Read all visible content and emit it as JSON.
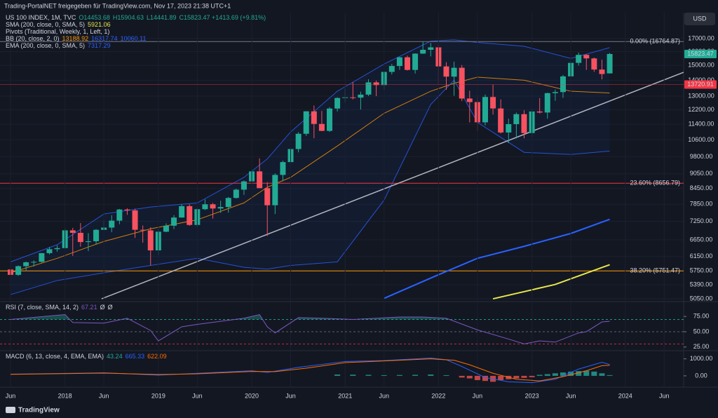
{
  "header": {
    "title": "Trading-PortalNET freigegeben für TradingView.com, Nov 17, 2023 21:38 UTC+1",
    "currency": "USD",
    "footer": "TradingView"
  },
  "legend": [
    {
      "parts": [
        {
          "text": "US 100 INDEX, 1M, TVC",
          "color": "#d1d4dc"
        },
        {
          "text": "O14453.68",
          "color": "#22ab94"
        },
        {
          "text": "H15904.63",
          "color": "#22ab94"
        },
        {
          "text": "L14441.89",
          "color": "#22ab94"
        },
        {
          "text": "C15823.47 +1413.69 (+9.81%)",
          "color": "#22ab94"
        }
      ]
    },
    {
      "parts": [
        {
          "text": "SMA (200, close, 0, SMA, 5)",
          "color": "#d1d4dc"
        },
        {
          "text": "5921.06",
          "color": "#e6e64c"
        }
      ]
    },
    {
      "parts": [
        {
          "text": "Pivots (Traditional, Weekly, 1, Left, 1)",
          "color": "#d1d4dc"
        }
      ]
    },
    {
      "parts": [
        {
          "text": "BB (20, close, 2, 0)",
          "color": "#d1d4dc"
        },
        {
          "text": "13188.92",
          "color": "#ff9800"
        },
        {
          "text": "16317.74",
          "color": "#2962ff"
        },
        {
          "text": "10060.11",
          "color": "#2962ff"
        }
      ]
    },
    {
      "parts": [
        {
          "text": "EMA (200, close, 0, SMA, 5)",
          "color": "#d1d4dc"
        },
        {
          "text": "7317.29",
          "color": "#2962ff"
        }
      ]
    }
  ],
  "chart_data": {
    "type": "candlestick",
    "up_color": "#22ab94",
    "down_color": "#f7525f",
    "xlim": [
      -1.35,
      86.5
    ],
    "xticks": [
      {
        "value": 0,
        "label": "Jun"
      },
      {
        "value": 7,
        "label": "2018"
      },
      {
        "value": 12,
        "label": "Jun"
      },
      {
        "value": 19,
        "label": "2019"
      },
      {
        "value": 24,
        "label": "Jun"
      },
      {
        "value": 31,
        "label": "2020"
      },
      {
        "value": 36,
        "label": "Jun"
      },
      {
        "value": 43,
        "label": "2021"
      },
      {
        "value": 48,
        "label": "Jun"
      },
      {
        "value": 55,
        "label": "2022"
      },
      {
        "value": 60,
        "label": "Jun"
      },
      {
        "value": 67,
        "label": "2023"
      },
      {
        "value": 72,
        "label": "Jun"
      },
      {
        "value": 79,
        "label": "2024"
      },
      {
        "value": 84,
        "label": "Jun"
      }
    ],
    "log_scale": true,
    "ylim": [
      4985,
      19190
    ],
    "yticks": [
      {
        "value": 17000,
        "label": "17000.00"
      },
      {
        "value": 16000,
        "label": "16000.00"
      },
      {
        "value": 15000,
        "label": "15000.00"
      },
      {
        "value": 14000,
        "label": "14000.00"
      },
      {
        "value": 13000,
        "label": "13000.00"
      },
      {
        "value": 12200,
        "label": "12200.00"
      },
      {
        "value": 11400,
        "label": "11400.00"
      },
      {
        "value": 10600,
        "label": "10600.00"
      },
      {
        "value": 9800,
        "label": "9800.00"
      },
      {
        "value": 9050,
        "label": "9050.00"
      },
      {
        "value": 8450,
        "label": "8450.00"
      },
      {
        "value": 7850,
        "label": "7850.00"
      },
      {
        "value": 7250,
        "label": "7250.00"
      },
      {
        "value": 6650,
        "label": "6650.00"
      },
      {
        "value": 6150,
        "label": "6150.00"
      },
      {
        "value": 5750,
        "label": "5750.00"
      },
      {
        "value": 5390,
        "label": "5390.00"
      },
      {
        "value": 5050,
        "label": "5050.00"
      }
    ],
    "grid": true,
    "candles": [
      [
        5790,
        5900,
        5570,
        5646
      ],
      [
        5646,
        5900,
        5620,
        5880
      ],
      [
        5880,
        6010,
        5750,
        5988
      ],
      [
        5988,
        6040,
        5870,
        6000
      ],
      [
        6000,
        6250,
        5980,
        6248
      ],
      [
        6248,
        6430,
        6210,
        6365
      ],
      [
        6365,
        6480,
        6290,
        6397
      ],
      [
        6397,
        7020,
        6390,
        6950
      ],
      [
        6950,
        7030,
        6170,
        6870
      ],
      [
        6870,
        7190,
        6440,
        6581
      ],
      [
        6581,
        6860,
        6310,
        6605
      ],
      [
        6605,
        6990,
        6520,
        6967
      ],
      [
        6967,
        7280,
        6960,
        7040
      ],
      [
        7040,
        7460,
        6890,
        7272
      ],
      [
        7272,
        7680,
        7150,
        7660
      ],
      [
        7660,
        7700,
        7470,
        7627
      ],
      [
        7627,
        7690,
        6710,
        6968
      ],
      [
        6968,
        7110,
        6560,
        6949
      ],
      [
        6949,
        7050,
        5900,
        6330
      ],
      [
        6330,
        6990,
        6190,
        6906
      ],
      [
        6906,
        7180,
        6890,
        7102
      ],
      [
        7102,
        7460,
        6990,
        7378
      ],
      [
        7378,
        7850,
        7370,
        7781
      ],
      [
        7781,
        7850,
        7100,
        7127
      ],
      [
        7127,
        7720,
        7050,
        7671
      ],
      [
        7671,
        8030,
        7640,
        7848
      ],
      [
        7848,
        7900,
        7340,
        7696
      ],
      [
        7696,
        7980,
        7540,
        7749
      ],
      [
        7749,
        8120,
        7550,
        8084
      ],
      [
        8084,
        8440,
        8060,
        8403
      ],
      [
        8403,
        8770,
        8200,
        8733
      ],
      [
        8733,
        9250,
        8700,
        9150
      ],
      [
        9150,
        9720,
        8470,
        8461
      ],
      [
        8461,
        8700,
        6770,
        7813
      ],
      [
        7813,
        9070,
        7500,
        9001
      ],
      [
        9001,
        9620,
        8740,
        9555
      ],
      [
        9555,
        10270,
        9320,
        10156
      ],
      [
        10156,
        10990,
        10000,
        10905
      ],
      [
        10905,
        12120,
        10800,
        12110
      ],
      [
        12110,
        12440,
        10680,
        11418
      ],
      [
        11418,
        12130,
        11040,
        11052
      ],
      [
        11052,
        12350,
        11000,
        12268
      ],
      [
        12268,
        12930,
        12100,
        12888
      ],
      [
        12888,
        13470,
        12620,
        12925
      ],
      [
        12925,
        13880,
        12800,
        12909
      ],
      [
        12909,
        13270,
        12210,
        13091
      ],
      [
        13091,
        14060,
        13000,
        13860
      ],
      [
        13860,
        13980,
        13000,
        13686
      ],
      [
        13686,
        14570,
        13400,
        14554
      ],
      [
        14554,
        15110,
        14380,
        14960
      ],
      [
        14960,
        15600,
        14690,
        15582
      ],
      [
        15582,
        15700,
        14650,
        14689
      ],
      [
        14689,
        15870,
        14440,
        15850
      ],
      [
        15850,
        16760,
        15840,
        16135
      ],
      [
        16135,
        16660,
        15650,
        16320
      ],
      [
        16320,
        16570,
        13720,
        14930
      ],
      [
        14930,
        15230,
        13390,
        14237
      ],
      [
        14237,
        15270,
        13020,
        14839
      ],
      [
        14839,
        15030,
        12700,
        12855
      ],
      [
        12855,
        13330,
        11500,
        12643
      ],
      [
        12643,
        12950,
        11040,
        11503
      ],
      [
        11503,
        13100,
        11340,
        12947
      ],
      [
        12947,
        13720,
        11930,
        12272
      ],
      [
        12272,
        12800,
        10920,
        10971
      ],
      [
        10971,
        11700,
        10440,
        11406
      ],
      [
        11406,
        12040,
        10670,
        11951
      ],
      [
        11951,
        12170,
        10680,
        10940
      ],
      [
        10940,
        12270,
        10700,
        12102
      ],
      [
        12102,
        12880,
        11990,
        12042
      ],
      [
        12042,
        13210,
        11700,
        13181
      ],
      [
        13181,
        13400,
        12720,
        13246
      ],
      [
        13246,
        14350,
        12890,
        14254
      ],
      [
        14254,
        15290,
        14180,
        15180
      ],
      [
        15180,
        15930,
        14990,
        15758
      ],
      [
        15758,
        15800,
        14690,
        15501
      ],
      [
        15501,
        15560,
        14560,
        14715
      ],
      [
        14715,
        15410,
        14060,
        14410
      ],
      [
        14453.68,
        15904.63,
        14441.89,
        15823.47
      ]
    ],
    "bb": {
      "x": [
        0,
        6,
        12,
        18,
        24,
        30,
        33,
        36,
        42,
        48,
        54,
        57,
        60,
        66,
        72,
        77
      ],
      "upper": [
        6000,
        6500,
        7500,
        7750,
        7900,
        8900,
        9700,
        11000,
        13300,
        15100,
        16800,
        16900,
        16700,
        16400,
        15500,
        16300
      ],
      "basis": [
        5700,
        6100,
        6600,
        7000,
        7300,
        7900,
        8500,
        8900,
        10300,
        12000,
        13300,
        13800,
        14200,
        14000,
        13300,
        13188
      ],
      "lower": [
        5150,
        5500,
        5700,
        5900,
        6100,
        5850,
        5800,
        5900,
        6000,
        8000,
        12500,
        14000,
        11500,
        10000,
        9900,
        10060
      ],
      "band_color": "#2962ff",
      "basis_color": "#ff9800"
    },
    "lines": [
      {
        "name": "ema",
        "color": "#2962ff",
        "width": 2,
        "points": [
          [
            48,
            5060
          ],
          [
            55,
            5650
          ],
          [
            60,
            6100
          ],
          [
            66,
            6450
          ],
          [
            72,
            6850
          ],
          [
            77,
            7317
          ]
        ]
      },
      {
        "name": "sma",
        "color": "#e6e64c",
        "width": 2,
        "points": [
          [
            62,
            5050
          ],
          [
            70,
            5400
          ],
          [
            77,
            5921
          ]
        ]
      },
      {
        "name": "trendline",
        "color": "#b2b5be",
        "width": 1.5,
        "points": [
          [
            11.7,
            5050
          ],
          [
            86.5,
            14530
          ]
        ]
      }
    ],
    "levels": [
      {
        "value": 16764.87,
        "label": "0.00% (16764.87)",
        "color": "#787b86"
      },
      {
        "value": 8656.79,
        "label": "23.60% (8656.79)",
        "color": "#f23645"
      },
      {
        "value": 5751.47,
        "label": "38.20% (5751.47)",
        "color": "#ff9800"
      }
    ],
    "price_tags": [
      {
        "value": 15823.47,
        "label": "15823.47",
        "color": "#22ab94"
      },
      {
        "value": 13720.91,
        "label": "13720.91",
        "color": "#f23645"
      }
    ],
    "rsi": {
      "title": "RSI (7, close, SMA, 14, 2)",
      "values": [
        "67.21",
        "Ø",
        "Ø"
      ],
      "value_colors": [
        "#7e57c2",
        "#d1d4dc",
        "#d1d4dc"
      ],
      "ylim": [
        19,
        97
      ],
      "yticks": [
        {
          "value": 75,
          "label": "75.00"
        },
        {
          "value": 50,
          "label": "50.00"
        },
        {
          "value": 25,
          "label": "25.00"
        }
      ],
      "levels": [
        70,
        50,
        30
      ],
      "color": "#7e57c2",
      "points": [
        [
          0,
          70
        ],
        [
          7,
          78
        ],
        [
          8,
          65
        ],
        [
          12,
          64
        ],
        [
          15,
          72
        ],
        [
          18,
          52
        ],
        [
          19,
          35
        ],
        [
          22,
          58
        ],
        [
          24,
          62
        ],
        [
          30,
          72
        ],
        [
          32,
          78
        ],
        [
          33,
          58
        ],
        [
          34,
          48
        ],
        [
          37,
          73
        ],
        [
          40,
          72
        ],
        [
          44,
          70
        ],
        [
          50,
          74
        ],
        [
          53,
          74
        ],
        [
          56,
          72
        ],
        [
          60,
          53
        ],
        [
          64,
          38
        ],
        [
          66,
          30
        ],
        [
          68,
          35
        ],
        [
          70,
          33
        ],
        [
          73,
          48
        ],
        [
          74,
          50
        ],
        [
          76,
          66
        ],
        [
          77,
          67
        ]
      ]
    },
    "macd": {
      "title": "MACD (6, 13, close, 4, EMA, EMA)",
      "values": [
        "43.24",
        "665.33",
        "622.09"
      ],
      "value_colors": [
        "#26a69a",
        "#2962ff",
        "#ff6d00"
      ],
      "ylim": [
        -500,
        1400
      ],
      "yticks": [
        {
          "value": 1000,
          "label": "1000.00"
        },
        {
          "value": 0,
          "label": "0.00"
        }
      ],
      "macd_color": "#2962ff",
      "signal_color": "#ff6d00",
      "macd_points": [
        [
          0,
          100
        ],
        [
          12,
          180
        ],
        [
          19,
          40
        ],
        [
          24,
          150
        ],
        [
          31,
          300
        ],
        [
          33,
          200
        ],
        [
          37,
          500
        ],
        [
          43,
          850
        ],
        [
          48,
          900
        ],
        [
          54,
          1050
        ],
        [
          56,
          950
        ],
        [
          58,
          550
        ],
        [
          61,
          -100
        ],
        [
          64,
          -350
        ],
        [
          67,
          -400
        ],
        [
          70,
          -200
        ],
        [
          73,
          400
        ],
        [
          76,
          800
        ],
        [
          77,
          665.33
        ]
      ],
      "signal_points": [
        [
          0,
          90
        ],
        [
          12,
          160
        ],
        [
          19,
          80
        ],
        [
          24,
          120
        ],
        [
          31,
          260
        ],
        [
          34,
          250
        ],
        [
          38,
          450
        ],
        [
          43,
          780
        ],
        [
          48,
          880
        ],
        [
          54,
          1000
        ],
        [
          57,
          920
        ],
        [
          59,
          650
        ],
        [
          62,
          150
        ],
        [
          65,
          -200
        ],
        [
          68,
          -300
        ],
        [
          71,
          -50
        ],
        [
          74,
          300
        ],
        [
          76,
          600
        ],
        [
          77,
          622.09
        ]
      ],
      "hist": [
        [
          42,
          80
        ],
        [
          44,
          70
        ],
        [
          46,
          60
        ],
        [
          48,
          40
        ],
        [
          50,
          50
        ],
        [
          52,
          60
        ],
        [
          54,
          80
        ],
        [
          56,
          40
        ],
        [
          58,
          -100
        ],
        [
          59,
          -150
        ],
        [
          60,
          -250
        ],
        [
          61,
          -300
        ],
        [
          62,
          -350
        ],
        [
          63,
          -250
        ],
        [
          64,
          -200
        ],
        [
          65,
          -150
        ],
        [
          66,
          -120
        ],
        [
          67,
          -80
        ],
        [
          68,
          60
        ],
        [
          69,
          100
        ],
        [
          70,
          150
        ],
        [
          71,
          200
        ],
        [
          72,
          250
        ],
        [
          73,
          280
        ],
        [
          74,
          300
        ],
        [
          75,
          250
        ],
        [
          76,
          150
        ],
        [
          77,
          43.24
        ]
      ]
    }
  }
}
